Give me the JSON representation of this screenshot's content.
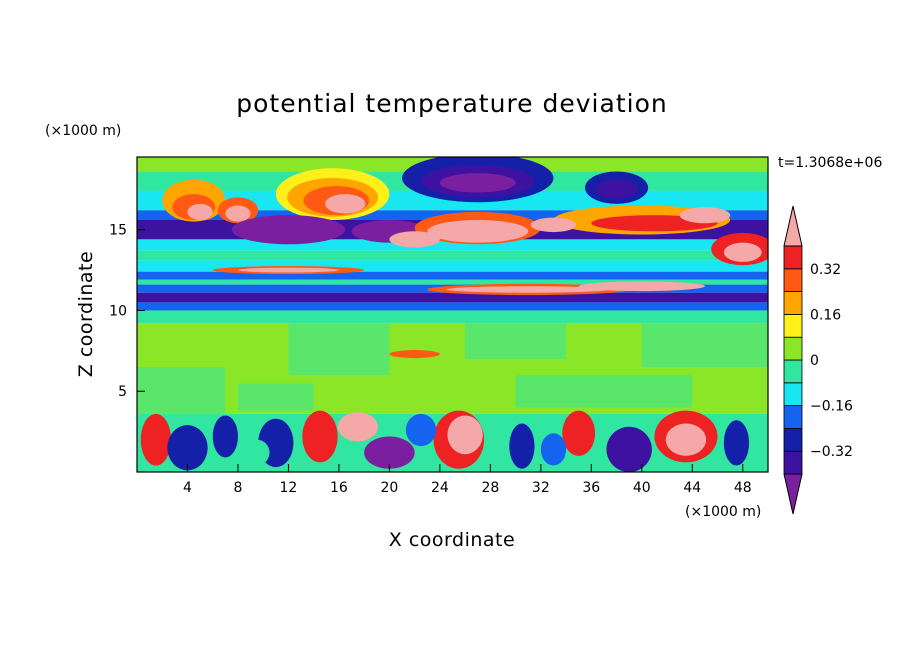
{
  "chart_data": {
    "type": "heatmap",
    "title": "potential temperature deviation",
    "xlabel": "X coordinate",
    "ylabel": "Z coordinate",
    "x_unit_label": "(×1000 m)",
    "y_unit_label": "(×1000 m)",
    "time_label": "t=1.3068e+06",
    "x_range": [
      0,
      50
    ],
    "y_range": [
      0,
      19.5
    ],
    "x_ticks": [
      4,
      8,
      12,
      16,
      20,
      24,
      28,
      32,
      36,
      40,
      44,
      48
    ],
    "x_tick_labels": [
      "4",
      "8",
      "12",
      "16",
      "20",
      "24",
      "28",
      "32",
      "36",
      "40",
      "44",
      "48"
    ],
    "y_ticks": [
      5,
      10,
      15
    ],
    "y_tick_labels": [
      "5",
      "10",
      "15"
    ],
    "colorbar": {
      "levels": [
        -0.4,
        -0.32,
        -0.24,
        -0.16,
        -0.08,
        0,
        0.08,
        0.16,
        0.24,
        0.32,
        0.4
      ],
      "tick_values": [
        -0.32,
        -0.16,
        0,
        0.16,
        0.32
      ],
      "tick_labels": [
        "−0.32",
        "−0.16",
        "0",
        "0.16",
        "0.32"
      ],
      "colors": [
        "#7a1fa0",
        "#3d12a0",
        "#1420a8",
        "#1464f0",
        "#18e6f0",
        "#30e6a0",
        "#8ce628",
        "#fff01a",
        "#ffa500",
        "#ff5a14",
        "#ee2222",
        "#f4a8a8"
      ],
      "extend": "both"
    },
    "grid": false
  }
}
